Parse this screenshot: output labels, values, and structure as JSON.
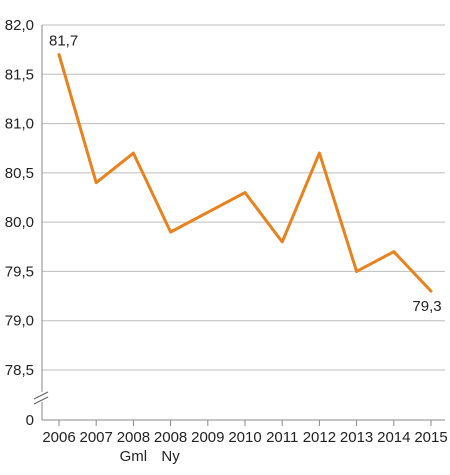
{
  "chart_data": {
    "type": "line",
    "title": "",
    "xlabel": "",
    "ylabel": "",
    "categories": [
      "2006",
      "2007",
      "2008",
      "2008",
      "2009",
      "2010",
      "2011",
      "2012",
      "2013",
      "2014",
      "2015"
    ],
    "category_sublabels": [
      "",
      "",
      "Gml",
      "Ny",
      "",
      "",
      "",
      "",
      "",
      "",
      ""
    ],
    "series": [
      {
        "color": "#e8821e",
        "values": [
          81.7,
          80.4,
          80.7,
          79.9,
          80.1,
          80.3,
          79.8,
          80.7,
          79.5,
          79.7,
          79.3
        ]
      }
    ],
    "y_ticks": [
      "82,0",
      "81,5",
      "81,0",
      "80,5",
      "80,0",
      "79,5",
      "79,0",
      "78,5"
    ],
    "y_tick_values": [
      82.0,
      81.5,
      81.0,
      80.5,
      80.0,
      79.5,
      79.0,
      78.5
    ],
    "y_zero_label": "0",
    "ylim": [
      78.5,
      82.0
    ],
    "axis_break": true,
    "grid": true,
    "data_labels": [
      {
        "index": 0,
        "text": "81,7"
      },
      {
        "index": 10,
        "text": "79,3"
      }
    ]
  }
}
